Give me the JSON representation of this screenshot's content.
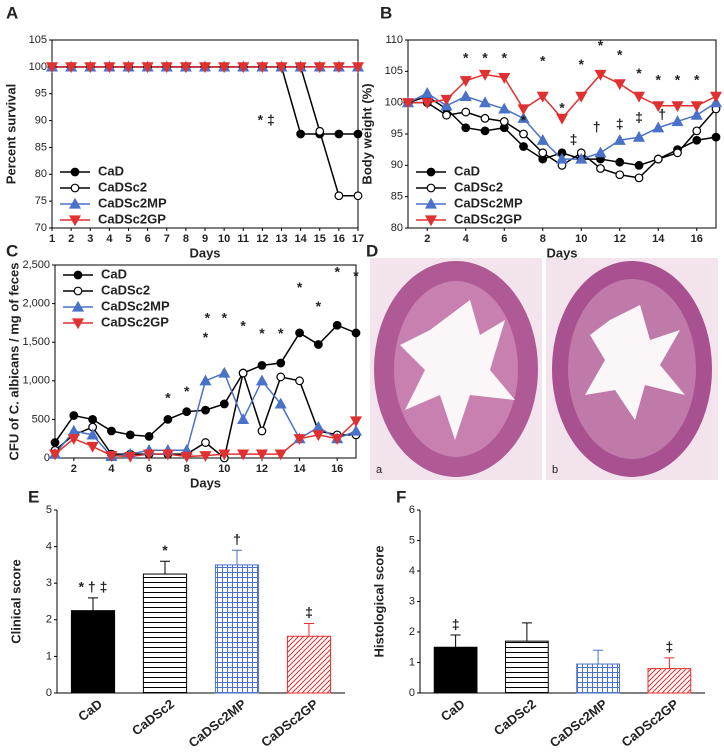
{
  "panel_labels": [
    "A",
    "B",
    "C",
    "D",
    "E",
    "F"
  ],
  "histology": {
    "labels": [
      "a",
      "b"
    ]
  },
  "chart_data": [
    {
      "type": "line",
      "ylabel": "Percent survival",
      "xlabel": "Days",
      "x": [
        1,
        2,
        3,
        4,
        5,
        6,
        7,
        8,
        9,
        10,
        11,
        12,
        13,
        14,
        15,
        16,
        17
      ],
      "xlim": [
        1,
        17
      ],
      "xticks": [
        1,
        2,
        3,
        4,
        5,
        6,
        7,
        8,
        9,
        10,
        11,
        12,
        13,
        14,
        15,
        16,
        17
      ],
      "ylim": [
        70,
        105
      ],
      "yticks": [
        70,
        75,
        80,
        85,
        90,
        95,
        100,
        105
      ],
      "legend": "lower left",
      "series": [
        {
          "name": "CaD",
          "color": "#000000",
          "marker": "circle",
          "values": [
            100,
            100,
            100,
            100,
            100,
            100,
            100,
            100,
            100,
            100,
            100,
            100,
            100,
            87.5,
            87.5,
            87.5,
            87.5
          ]
        },
        {
          "name": "CaDSc2",
          "color": "#000000",
          "marker": "circle-open",
          "values": [
            100,
            100,
            100,
            100,
            100,
            100,
            100,
            100,
            100,
            100,
            100,
            100,
            100,
            100,
            88,
            76,
            76
          ]
        },
        {
          "name": "CaDSc2MP",
          "color": "#4a72c8",
          "marker": "triangle",
          "values": [
            100,
            100,
            100,
            100,
            100,
            100,
            100,
            100,
            100,
            100,
            100,
            100,
            100,
            100,
            100,
            100,
            100
          ]
        },
        {
          "name": "CaDSc2GP",
          "color": "#e03030",
          "marker": "triangle-down",
          "values": [
            100,
            100,
            100,
            100,
            100,
            100,
            100,
            100,
            100,
            100,
            100,
            100,
            100,
            100,
            100,
            100,
            100
          ]
        }
      ],
      "annotations": [
        {
          "text": "* ‡",
          "x": 12.2,
          "y": 90
        }
      ]
    },
    {
      "type": "line",
      "ylabel": "Body weight (%)",
      "xlabel": "Days",
      "x": [
        1,
        2,
        3,
        4,
        5,
        6,
        7,
        8,
        9,
        10,
        11,
        12,
        13,
        14,
        15,
        16,
        17
      ],
      "xlim": [
        1,
        17
      ],
      "xticks": [
        2,
        4,
        6,
        8,
        10,
        12,
        14,
        16
      ],
      "ylim": [
        80,
        110
      ],
      "yticks": [
        80,
        85,
        90,
        95,
        100,
        105,
        110
      ],
      "legend": "lower left",
      "series": [
        {
          "name": "CaD",
          "color": "#000000",
          "marker": "circle",
          "values": [
            100,
            101,
            99,
            96,
            95.5,
            96,
            93,
            91,
            92,
            91,
            91,
            90.5,
            90,
            91,
            92.5,
            94,
            94.5
          ]
        },
        {
          "name": "CaDSc2",
          "color": "#000000",
          "marker": "circle-open",
          "values": [
            100,
            100,
            98,
            98.5,
            97.5,
            97,
            95,
            92,
            90,
            92,
            89.5,
            88.5,
            88,
            91,
            92,
            95.5,
            99
          ]
        },
        {
          "name": "CaDSc2MP",
          "color": "#4a72c8",
          "marker": "triangle",
          "values": [
            100,
            101.5,
            99.5,
            101,
            100,
            99,
            97.5,
            94,
            91,
            91,
            92,
            94,
            94.5,
            96,
            97,
            98,
            100
          ]
        },
        {
          "name": "CaDSc2GP",
          "color": "#e03030",
          "marker": "triangle-down",
          "values": [
            100,
            100,
            100.5,
            103.5,
            104.5,
            104,
            99,
            101,
            97.5,
            101,
            104.5,
            103,
            101,
            99.5,
            99.5,
            99.5,
            101
          ]
        }
      ],
      "annotations": [
        {
          "text": "*",
          "x": 4,
          "y": 107
        },
        {
          "text": "*",
          "x": 5,
          "y": 107
        },
        {
          "text": "*",
          "x": 6,
          "y": 107
        },
        {
          "text": "*",
          "x": 7,
          "y": 97
        },
        {
          "text": "*",
          "x": 8,
          "y": 106.5
        },
        {
          "text": "*",
          "x": 9,
          "y": 99
        },
        {
          "text": "*",
          "x": 10,
          "y": 106
        },
        {
          "text": "*",
          "x": 11,
          "y": 109
        },
        {
          "text": "*",
          "x": 12,
          "y": 107.5
        },
        {
          "text": "*",
          "x": 13,
          "y": 104.5
        },
        {
          "text": "*",
          "x": 14,
          "y": 103.5
        },
        {
          "text": "*",
          "x": 15,
          "y": 103.5
        },
        {
          "text": "*",
          "x": 16,
          "y": 103.5
        },
        {
          "text": "‡",
          "x": 9.6,
          "y": 94
        },
        {
          "text": "†",
          "x": 10.8,
          "y": 96
        },
        {
          "text": "‡",
          "x": 12,
          "y": 96.5
        },
        {
          "text": "‡",
          "x": 13,
          "y": 97.5
        },
        {
          "text": "†",
          "x": 14.2,
          "y": 98
        }
      ]
    },
    {
      "type": "line",
      "ylabel": "CFU of C. albicans / mg of feces",
      "xlabel": "Days",
      "x": [
        1,
        2,
        3,
        4,
        5,
        6,
        7,
        8,
        9,
        10,
        11,
        12,
        13,
        14,
        15,
        16,
        17
      ],
      "xlim": [
        1,
        17
      ],
      "xticks": [
        2,
        4,
        6,
        8,
        10,
        12,
        14,
        16
      ],
      "ylim": [
        0,
        2500
      ],
      "yticks": [
        0,
        500,
        {
          "value": 1000,
          "label": "1,000"
        },
        {
          "value": 1500,
          "label": "1,500"
        },
        {
          "value": 2000,
          "label": "2,000"
        },
        {
          "value": 2500,
          "label": "2,500"
        }
      ],
      "legend": "upper left",
      "series": [
        {
          "name": "CaD",
          "color": "#000000",
          "marker": "circle",
          "values": [
            200,
            550,
            500,
            350,
            300,
            280,
            500,
            600,
            620,
            700,
            1100,
            1200,
            1230,
            1620,
            1470,
            1720,
            1620
          ]
        },
        {
          "name": "CaDSc2",
          "color": "#000000",
          "marker": "circle-open",
          "values": [
            100,
            300,
            400,
            50,
            50,
            50,
            50,
            50,
            200,
            0,
            1100,
            350,
            1050,
            1000,
            350,
            300,
            300
          ]
        },
        {
          "name": "CaDSc2MP",
          "color": "#4a72c8",
          "marker": "triangle",
          "values": [
            50,
            350,
            300,
            20,
            50,
            100,
            100,
            100,
            1000,
            1100,
            500,
            1000,
            700,
            250,
            400,
            250,
            350
          ]
        },
        {
          "name": "CaDSc2GP",
          "color": "#e03030",
          "marker": "triangle-down",
          "values": [
            50,
            250,
            150,
            30,
            20,
            50,
            50,
            20,
            30,
            50,
            50,
            50,
            50,
            250,
            300,
            250,
            480
          ]
        }
      ],
      "annotations": [
        {
          "text": "*",
          "x": 7,
          "y": 770
        },
        {
          "text": "*",
          "x": 8,
          "y": 850
        },
        {
          "text": "*",
          "x": 9,
          "y": 1550
        },
        {
          "text": "*",
          "x": 9.1,
          "y": 1800
        },
        {
          "text": "*",
          "x": 10,
          "y": 1800
        },
        {
          "text": "*",
          "x": 11,
          "y": 1700
        },
        {
          "text": "*",
          "x": 12,
          "y": 1600
        },
        {
          "text": "*",
          "x": 13,
          "y": 1600
        },
        {
          "text": "*",
          "x": 14,
          "y": 2200
        },
        {
          "text": "*",
          "x": 15,
          "y": 1950
        },
        {
          "text": "*",
          "x": 16,
          "y": 2400
        },
        {
          "text": "*",
          "x": 17,
          "y": 2350
        }
      ]
    },
    {
      "type": "bar",
      "ylabel": "Clinical score",
      "categories": [
        "CaD",
        "CaDSc2",
        "CaDSc2MP",
        "CaDSc2GP"
      ],
      "values": [
        2.25,
        3.25,
        3.5,
        1.55
      ],
      "errors": [
        0.35,
        0.35,
        0.4,
        0.35
      ],
      "colors": [
        "#000000",
        "#000000",
        "#4a72c8",
        "#e03030"
      ],
      "patterns": [
        "solid",
        "hlines",
        "grid",
        "diagonal"
      ],
      "marks_above": [
        "* † ‡",
        "*",
        "†",
        "‡"
      ],
      "ylim": [
        0,
        5
      ],
      "yticks": [
        0,
        1,
        2,
        3,
        4,
        5
      ]
    },
    {
      "type": "bar",
      "ylabel": "Histological score",
      "categories": [
        "CaD",
        "CaDSc2",
        "CaDSc2MP",
        "CaDSc2GP"
      ],
      "values": [
        1.5,
        1.7,
        0.95,
        0.8
      ],
      "errors": [
        0.4,
        0.6,
        0.45,
        0.35
      ],
      "colors": [
        "#000000",
        "#000000",
        "#4a72c8",
        "#e03030"
      ],
      "patterns": [
        "solid",
        "hlines",
        "grid",
        "diagonal"
      ],
      "marks_above": [
        "‡",
        null,
        null,
        "‡"
      ],
      "ylim": [
        0,
        6
      ],
      "yticks": [
        0,
        1,
        2,
        3,
        4,
        5,
        6
      ]
    }
  ]
}
